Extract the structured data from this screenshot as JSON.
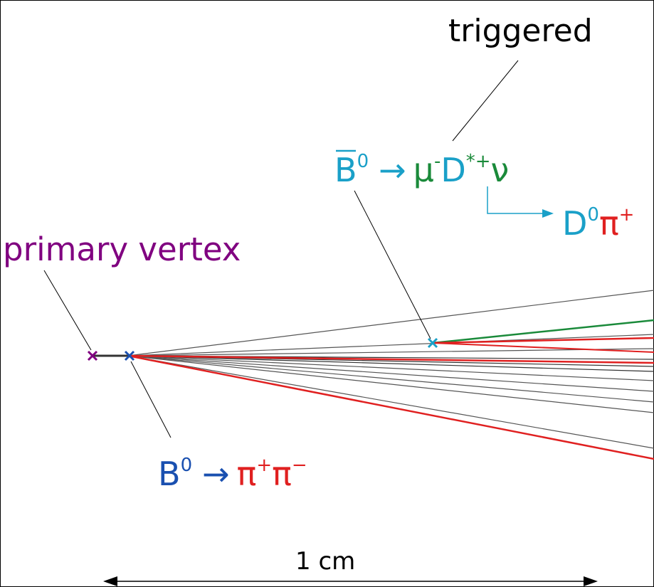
{
  "labels": {
    "triggered": "triggered",
    "primary_vertex": "primary vertex",
    "scale": "1 cm"
  },
  "decay_bbar": {
    "parent": "B",
    "parent_sup": "0",
    "arrow": "→",
    "muon": "μ",
    "muon_sup": "-",
    "dstar": "D",
    "dstar_sup": "*+",
    "nu": "ν"
  },
  "decay_dstar": {
    "d": "D",
    "d_sup": "0",
    "pi": "π",
    "pi_sup": "+"
  },
  "decay_b": {
    "parent": "B",
    "parent_sup": "0",
    "arrow": "→",
    "pi1": "π",
    "pi1_sup": "+",
    "pi2": "π",
    "pi2_sup": "−"
  }
}
